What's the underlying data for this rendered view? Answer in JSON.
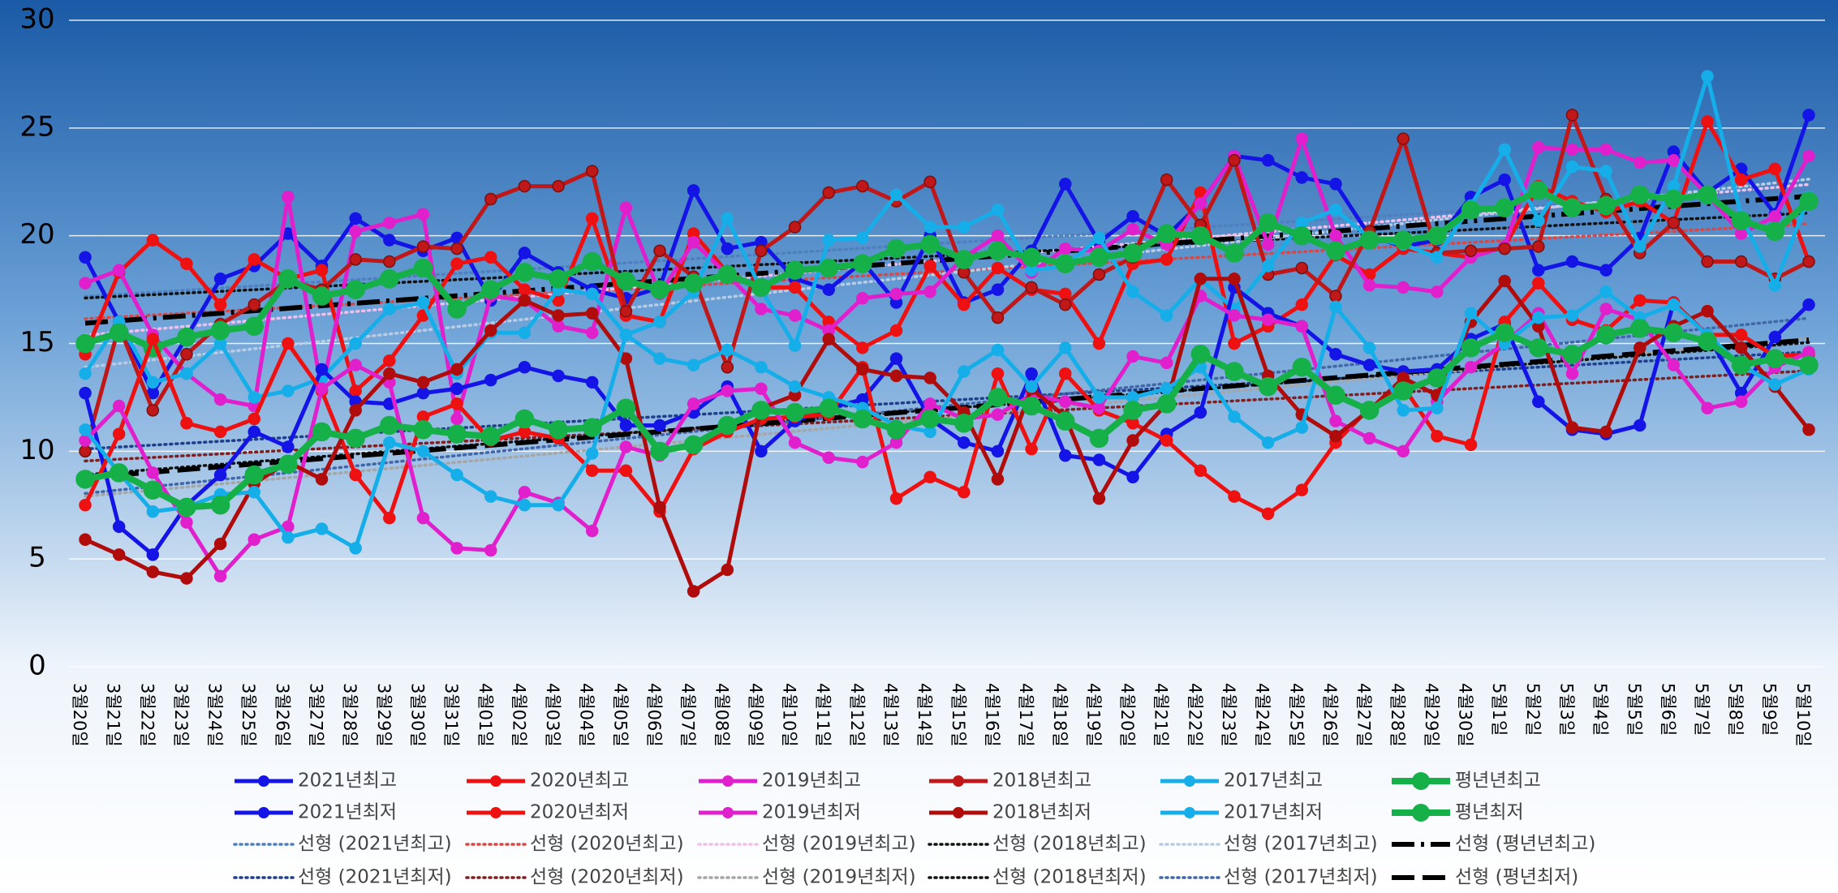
{
  "chart_data": {
    "type": "line",
    "categories": [
      "3월20일",
      "3월21일",
      "3월22일",
      "3월23일",
      "3월24일",
      "3월25일",
      "3월26일",
      "3월27일",
      "3월28일",
      "3월29일",
      "3월30일",
      "3월31일",
      "4월01일",
      "4월02일",
      "4월03일",
      "4월04일",
      "4월05일",
      "4월06일",
      "4월07일",
      "4월08일",
      "4월09일",
      "4월10일",
      "4월11일",
      "4월12일",
      "4월13일",
      "4월14일",
      "4월15일",
      "4월16일",
      "4월17일",
      "4월18일",
      "4월19일",
      "4월20일",
      "4월21일",
      "4월22일",
      "4월23일",
      "4월24일",
      "4월25일",
      "4월26일",
      "4월27일",
      "4월28일",
      "4월29일",
      "4월30일",
      "5월1일",
      "5월2일",
      "5월3일",
      "5월4일",
      "5월5일",
      "5월6일",
      "5월7일",
      "5월8일",
      "5월9일",
      "5월10일"
    ],
    "ylim": [
      0,
      30
    ],
    "yticks": [
      0,
      5,
      10,
      15,
      20,
      25,
      30
    ],
    "grid": true,
    "series": [
      {
        "name": "2021년최고",
        "color": "#1414e6",
        "values": [
          19.0,
          16.0,
          12.7,
          15.3,
          18.0,
          18.6,
          20.1,
          18.6,
          20.8,
          19.8,
          19.3,
          19.9,
          17.0,
          19.2,
          18.3,
          17.5,
          17.1,
          17.6,
          22.1,
          19.4,
          19.7,
          18.0,
          17.5,
          18.8,
          16.9,
          20.0,
          16.9,
          17.5,
          19.3,
          22.4,
          19.7,
          20.9,
          20.0,
          21.5,
          23.7,
          23.5,
          22.7,
          22.4,
          20.0,
          19.5,
          19.8,
          21.8,
          22.6,
          18.4,
          18.8,
          18.4,
          19.9,
          23.9,
          22.0,
          23.1,
          21.0,
          25.6
        ],
        "trend": {
          "name": "선형 (2021년최고)",
          "color": "#4f7fbf",
          "dash": "dotted"
        }
      },
      {
        "name": "2020년최고",
        "color": "#ee1111",
        "values": [
          14.5,
          18.3,
          19.8,
          18.7,
          16.8,
          18.9,
          18.0,
          18.4,
          12.8,
          14.2,
          16.3,
          18.7,
          19.0,
          17.5,
          17.0,
          20.8,
          16.3,
          16.0,
          20.1,
          18.3,
          17.6,
          17.6,
          16.0,
          14.8,
          15.6,
          18.6,
          16.8,
          18.5,
          17.5,
          17.3,
          15.0,
          18.7,
          18.9,
          22.0,
          15.0,
          15.8,
          16.8,
          19.1,
          18.2,
          19.4,
          19.2,
          19.0,
          19.5,
          22.3,
          21.6,
          21.1,
          21.6,
          20.6,
          25.3,
          22.6,
          23.1,
          18.8
        ],
        "trend": {
          "name": "선형 (2020년최고)",
          "color": "#d84848",
          "dash": "dotted"
        }
      },
      {
        "name": "2019년최고",
        "color": "#e020cc",
        "values": [
          17.8,
          18.4,
          15.4,
          13.6,
          12.4,
          12.1,
          21.8,
          12.8,
          20.2,
          20.6,
          21.0,
          11.5,
          17.2,
          17.0,
          15.8,
          15.5,
          21.3,
          17.3,
          19.7,
          18.2,
          16.6,
          16.3,
          15.6,
          17.1,
          17.3,
          17.4,
          19.0,
          20.0,
          18.3,
          19.4,
          19.3,
          20.3,
          19.6,
          21.5,
          23.7,
          19.6,
          24.5,
          20.0,
          17.7,
          17.6,
          17.4,
          19.0,
          19.5,
          24.1,
          24.0,
          24.0,
          23.4,
          23.5,
          21.9,
          20.1,
          20.9,
          23.7
        ],
        "trend": {
          "name": "선형 (2019년최고)",
          "color": "#f0c0ea",
          "dash": "dotted"
        }
      },
      {
        "name": "2018년최고",
        "color": "#c01818",
        "values": [
          10.0,
          15.8,
          11.9,
          14.5,
          15.9,
          16.8,
          17.9,
          17.5,
          18.9,
          18.8,
          19.5,
          19.4,
          21.7,
          22.3,
          22.3,
          23.0,
          16.5,
          19.3,
          18.1,
          13.9,
          19.3,
          20.4,
          22.0,
          22.3,
          21.6,
          22.5,
          18.3,
          16.2,
          17.6,
          16.8,
          18.2,
          19.0,
          22.6,
          20.5,
          23.5,
          18.2,
          18.5,
          17.2,
          20.2,
          24.5,
          19.2,
          19.3,
          19.4,
          19.5,
          25.6,
          21.7,
          19.2,
          20.6,
          18.8,
          18.8,
          18.0,
          18.8
        ],
        "trend": {
          "name": "선형 (2018년최고)",
          "color": "#111111",
          "dash": "dotted"
        }
      },
      {
        "name": "2017년최고",
        "color": "#16aee8",
        "values": [
          13.6,
          16.0,
          13.2,
          13.6,
          15.0,
          12.5,
          12.8,
          13.4,
          15.0,
          16.6,
          16.9,
          13.6,
          15.5,
          15.5,
          17.5,
          17.3,
          15.4,
          16.0,
          17.4,
          20.8,
          17.5,
          14.9,
          19.8,
          19.9,
          21.9,
          20.4,
          20.4,
          21.2,
          18.4,
          18.6,
          19.9,
          17.4,
          16.3,
          18.0,
          16.6,
          18.6,
          20.6,
          21.2,
          19.9,
          19.6,
          19.0,
          21.4,
          24.0,
          20.7,
          23.2,
          23.0,
          19.5,
          22.3,
          27.4,
          20.9,
          17.7,
          21.8
        ],
        "trend": {
          "name": "선형 (2017년최고)",
          "color": "#b8cce4",
          "dash": "dotted"
        }
      },
      {
        "name": "평년년최고",
        "color": "#16b048",
        "big": true,
        "values": [
          15.0,
          15.5,
          14.8,
          15.3,
          15.6,
          15.8,
          18.0,
          17.2,
          17.5,
          18.0,
          18.5,
          16.6,
          17.5,
          18.3,
          18.0,
          18.8,
          17.9,
          17.5,
          17.8,
          18.2,
          17.6,
          18.4,
          18.5,
          18.7,
          19.4,
          19.6,
          18.9,
          19.3,
          19.0,
          18.7,
          19.0,
          19.2,
          20.1,
          20.0,
          19.2,
          20.6,
          20.0,
          19.3,
          19.8,
          19.8,
          20.0,
          21.2,
          21.3,
          22.1,
          21.3,
          21.4,
          21.9,
          21.7,
          21.9,
          20.7,
          20.2,
          21.6
        ],
        "trend": {
          "name": "선형 (평년년최고)",
          "color": "#000000",
          "dash": "dash-dot"
        }
      },
      {
        "name": "2021년최저",
        "color": "#1414e6",
        "values": [
          12.7,
          6.5,
          5.2,
          7.5,
          8.9,
          10.9,
          10.2,
          13.8,
          12.3,
          12.2,
          12.7,
          12.9,
          13.3,
          13.9,
          13.5,
          13.2,
          11.2,
          11.2,
          11.8,
          13.0,
          10.0,
          11.4,
          12.0,
          12.4,
          14.3,
          11.5,
          10.4,
          10.0,
          13.6,
          9.8,
          9.6,
          8.8,
          10.8,
          11.8,
          17.6,
          16.4,
          15.8,
          14.5,
          14.0,
          13.7,
          13.8,
          15.2,
          15.9,
          12.3,
          11.0,
          10.8,
          11.2,
          16.9,
          15.4,
          12.7,
          15.3,
          16.8
        ],
        "trend": {
          "name": "선형 (2021년최저)",
          "color": "#1f3f8a",
          "dash": "dotted"
        }
      },
      {
        "name": "2020년최저",
        "color": "#ee1111",
        "values": [
          7.5,
          10.8,
          15.2,
          11.3,
          10.9,
          11.5,
          15.0,
          12.8,
          8.9,
          6.9,
          11.6,
          12.2,
          10.5,
          10.9,
          10.6,
          9.1,
          9.1,
          7.2,
          10.1,
          10.9,
          11.5,
          11.6,
          11.7,
          13.9,
          7.8,
          8.8,
          8.1,
          13.6,
          10.1,
          13.6,
          11.9,
          11.3,
          10.5,
          9.1,
          7.9,
          7.1,
          8.2,
          10.4,
          12.0,
          13.0,
          10.7,
          10.3,
          16.0,
          17.8,
          16.1,
          15.6,
          17.0,
          16.9,
          15.4,
          15.4,
          14.4,
          14.5
        ],
        "trend": {
          "name": "선형 (2020년최저)",
          "color": "#7f1f1f",
          "dash": "dotted"
        }
      },
      {
        "name": "2019년최저",
        "color": "#e020cc",
        "values": [
          10.5,
          12.1,
          9.0,
          6.7,
          4.2,
          5.9,
          6.5,
          12.9,
          14.0,
          13.2,
          6.9,
          5.5,
          5.4,
          8.1,
          7.6,
          6.3,
          10.2,
          9.8,
          12.2,
          12.8,
          12.9,
          10.4,
          9.7,
          9.5,
          10.4,
          12.2,
          11.5,
          11.7,
          12.6,
          12.3,
          12.0,
          14.4,
          14.1,
          17.2,
          16.3,
          16.1,
          15.8,
          11.4,
          10.6,
          10.0,
          12.3,
          13.9,
          15.0,
          16.4,
          13.6,
          16.6,
          16.1,
          14.0,
          12.0,
          12.3,
          13.9,
          14.6
        ],
        "trend": {
          "name": "선형 (2019년최저)",
          "color": "#a6a6a6",
          "dash": "dotted"
        }
      },
      {
        "name": "2018년최저",
        "color": "#b00c0c",
        "values": [
          5.9,
          5.2,
          4.4,
          4.1,
          5.7,
          8.5,
          9.5,
          8.7,
          11.9,
          13.6,
          13.2,
          13.8,
          15.6,
          17.0,
          16.3,
          16.4,
          14.3,
          7.4,
          3.5,
          4.5,
          12.0,
          12.6,
          15.2,
          13.8,
          13.5,
          13.4,
          11.8,
          8.7,
          12.9,
          11.6,
          7.8,
          10.5,
          12.2,
          18.0,
          18.0,
          13.5,
          11.7,
          10.7,
          11.9,
          13.4,
          12.6,
          16.0,
          17.9,
          15.8,
          11.1,
          10.9,
          14.8,
          15.8,
          16.5,
          14.8,
          13.0,
          11.0
        ],
        "trend": {
          "name": "선형 (2018년최저)",
          "color": "#111111",
          "dash": "dotted"
        }
      },
      {
        "name": "2017년최저",
        "color": "#16aee8",
        "values": [
          11.0,
          9.0,
          7.2,
          7.4,
          8.0,
          8.1,
          6.0,
          6.4,
          5.5,
          10.4,
          10.0,
          8.9,
          7.9,
          7.5,
          7.5,
          9.9,
          15.4,
          14.3,
          14.0,
          14.7,
          13.9,
          13.0,
          12.5,
          12.0,
          11.2,
          10.9,
          13.7,
          14.7,
          13.0,
          14.8,
          12.5,
          12.5,
          12.9,
          13.9,
          11.6,
          10.4,
          11.1,
          16.7,
          14.8,
          11.9,
          12.0,
          16.4,
          15.0,
          16.2,
          16.3,
          17.4,
          16.2,
          16.8,
          15.4,
          14.0,
          13.1,
          13.8
        ],
        "trend": {
          "name": "선형 (2017년최저)",
          "color": "#4267a8",
          "dash": "dotted"
        }
      },
      {
        "name": "평년최저",
        "color": "#16b048",
        "big": true,
        "values": [
          8.7,
          9.0,
          8.2,
          7.4,
          7.5,
          8.9,
          9.4,
          10.9,
          10.6,
          11.2,
          11.0,
          10.8,
          10.7,
          11.5,
          11.0,
          11.1,
          12.0,
          10.0,
          10.3,
          11.2,
          11.9,
          11.8,
          12.0,
          11.5,
          11.0,
          11.5,
          11.3,
          12.5,
          12.1,
          11.4,
          10.6,
          11.9,
          12.2,
          14.5,
          13.7,
          13.0,
          13.9,
          12.6,
          11.9,
          12.8,
          13.4,
          14.8,
          15.5,
          14.8,
          14.5,
          15.4,
          15.7,
          15.5,
          15.1,
          14.0,
          14.3,
          14.0
        ],
        "trend": {
          "name": "선형 (평년최저)",
          "color": "#000000",
          "dash": "long-dash"
        }
      }
    ]
  }
}
